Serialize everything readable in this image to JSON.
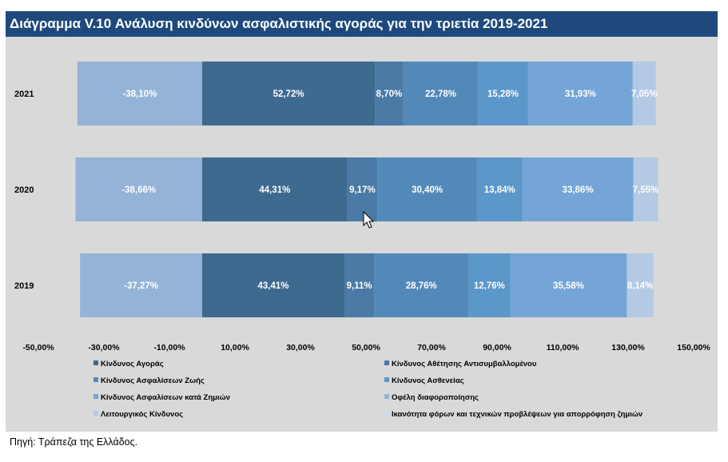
{
  "title": "Διάγραμμα V.10 Ανάλυση κινδύνων ασφαλιστικής αγοράς για την τριετία 2019-2021",
  "source": "Πηγή: Τράπεζα της Ελλάδος.",
  "chart_data": {
    "type": "bar",
    "orientation": "horizontal",
    "stacked": true,
    "title": "Διάγραμμα V.10 Ανάλυση κινδύνων ασφαλιστικής αγοράς για την τριετία 2019-2021",
    "categories": [
      "2021",
      "2020",
      "2019"
    ],
    "xlim": [
      -50,
      150
    ],
    "xticks": [
      -50,
      -30,
      -10,
      10,
      30,
      50,
      70,
      90,
      110,
      130,
      150
    ],
    "xtick_labels": [
      "-50,00%",
      "-30,00%",
      "-10,00%",
      "10,00%",
      "30,00%",
      "50,00%",
      "70,00%",
      "90,00%",
      "110,00%",
      "130,00%",
      "150,00%"
    ],
    "grid": false,
    "legend_position": "bottom",
    "series": [
      {
        "name": "Κίνδυνος Αγοράς",
        "color": "#3f6a8f",
        "values": [
          52.72,
          44.31,
          43.41
        ],
        "labels": [
          "52,72%",
          "44,31%",
          "43,41%"
        ]
      },
      {
        "name": "Κίνδυνος Αθέτησης Αντισυμβαλλομένου",
        "color": "#4a7aa5",
        "values": [
          8.7,
          9.17,
          9.11
        ],
        "labels": [
          "8,70%",
          "9,17%",
          "9,11%"
        ]
      },
      {
        "name": "Κίνδυνος Ασφαλίσεων Ζωής",
        "color": "#5389b8",
        "values": [
          22.78,
          30.4,
          28.76
        ],
        "labels": [
          "22,78%",
          "30,40%",
          "28,76%"
        ]
      },
      {
        "name": "Κίνδυνος Ασθενείας",
        "color": "#5b97c9",
        "values": [
          15.28,
          13.84,
          12.76
        ],
        "labels": [
          "15,28%",
          "13,84%",
          "12,76%"
        ]
      },
      {
        "name": "Κίνδυνος Ασφαλίσεων κατά Ζημιών",
        "color": "#74a5d6",
        "values": [
          31.93,
          33.86,
          35.58
        ],
        "labels": [
          "31,93%",
          "33,86%",
          "35,58%"
        ]
      },
      {
        "name": "Οφέλη διαφοροποίησης",
        "color": "#95b3d7",
        "values": [
          -38.1,
          -38.66,
          -37.27
        ],
        "labels": [
          "-38,10%",
          "-38,66%",
          "-37,27%"
        ]
      },
      {
        "name": "Λειτουργικός Κίνδυνος",
        "color": "#b4c9e4",
        "values": [
          7.05,
          7.55,
          8.14
        ],
        "labels": [
          "7,05%",
          "7,55%",
          "8,14%"
        ]
      },
      {
        "name": "Ικανότητα φόρων και τεχνικών προβλέψεων για απορρόφηση ζημιών",
        "color": "#cfdcee",
        "values": [
          0,
          0,
          0
        ],
        "labels": [
          "",
          "",
          ""
        ]
      }
    ]
  }
}
